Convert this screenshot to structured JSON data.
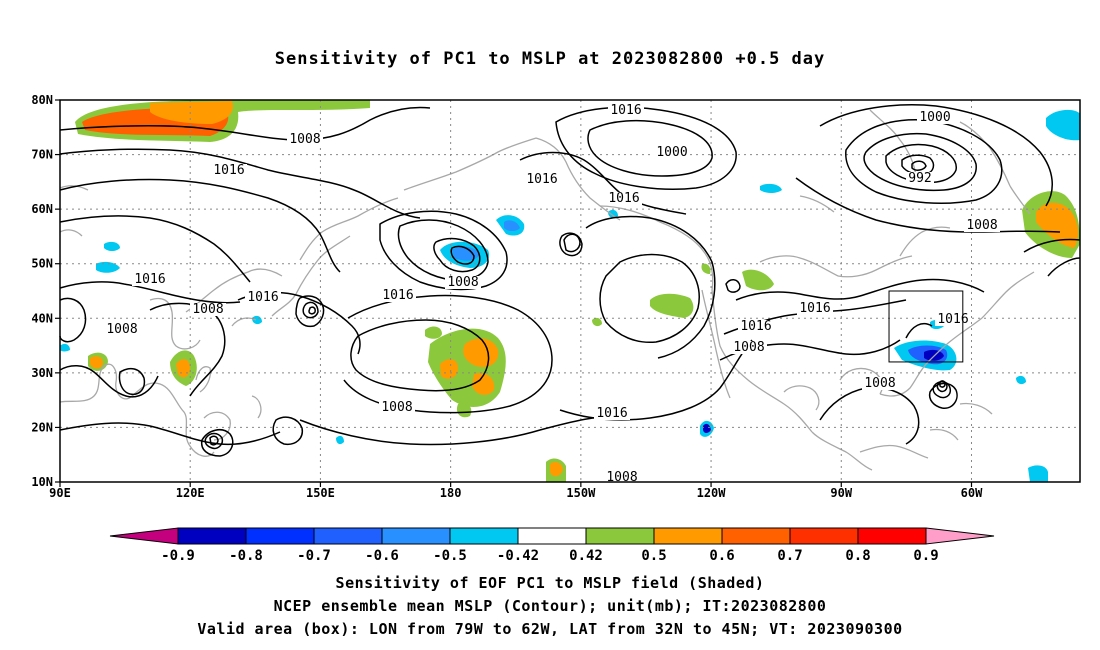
{
  "title": "Sensitivity of PC1 to MSLP at 2023082800 +0.5 day",
  "map": {
    "lat_ticks": [
      "80N",
      "70N",
      "60N",
      "50N",
      "40N",
      "30N",
      "20N",
      "10N"
    ],
    "lon_ticks": [
      "90E",
      "120E",
      "150E",
      "180",
      "150W",
      "120W",
      "90W",
      "60W"
    ],
    "contour_labels": [
      {
        "text": "1008"
      },
      {
        "text": "1016"
      },
      {
        "text": "1016"
      },
      {
        "text": "1008"
      },
      {
        "text": "1016"
      },
      {
        "text": "1008"
      },
      {
        "text": "1016"
      },
      {
        "text": "1008"
      },
      {
        "text": "1016"
      },
      {
        "text": "1008"
      },
      {
        "text": "1000"
      },
      {
        "text": "1016"
      },
      {
        "text": "1016"
      },
      {
        "text": "1016"
      },
      {
        "text": "1016"
      },
      {
        "text": "1008"
      },
      {
        "text": "1016"
      },
      {
        "text": "1000"
      },
      {
        "text": "992"
      },
      {
        "text": "1008"
      },
      {
        "text": "1008"
      },
      {
        "text": "1016"
      },
      {
        "text": "1008"
      }
    ],
    "valid_box": {
      "lon_min": -79,
      "lon_max": -62,
      "lat_min": 32,
      "lat_max": 45
    }
  },
  "colorbar": {
    "colors": [
      "#c4007f",
      "#0000c0",
      "#0030ff",
      "#2060ff",
      "#2890ff",
      "#00c8f0",
      "#ffffff",
      "#8cc83c",
      "#ff9b00",
      "#ff6000",
      "#ff3000",
      "#ff0000",
      "#ff9ec8"
    ],
    "labels": [
      "-0.9",
      "-0.8",
      "-0.7",
      "-0.6",
      "-0.5",
      "-0.42",
      "0.42",
      "0.5",
      "0.6",
      "0.7",
      "0.8",
      "0.9"
    ]
  },
  "caption": {
    "line1": "Sensitivity of EOF PC1 to MSLP field (Shaded)",
    "line2": "NCEP ensemble mean MSLP (Contour); unit(mb); IT:2023082800",
    "line3": "Valid area (box): LON from 79W to 62W, LAT from 32N to 45N; VT: 2023090300"
  }
}
